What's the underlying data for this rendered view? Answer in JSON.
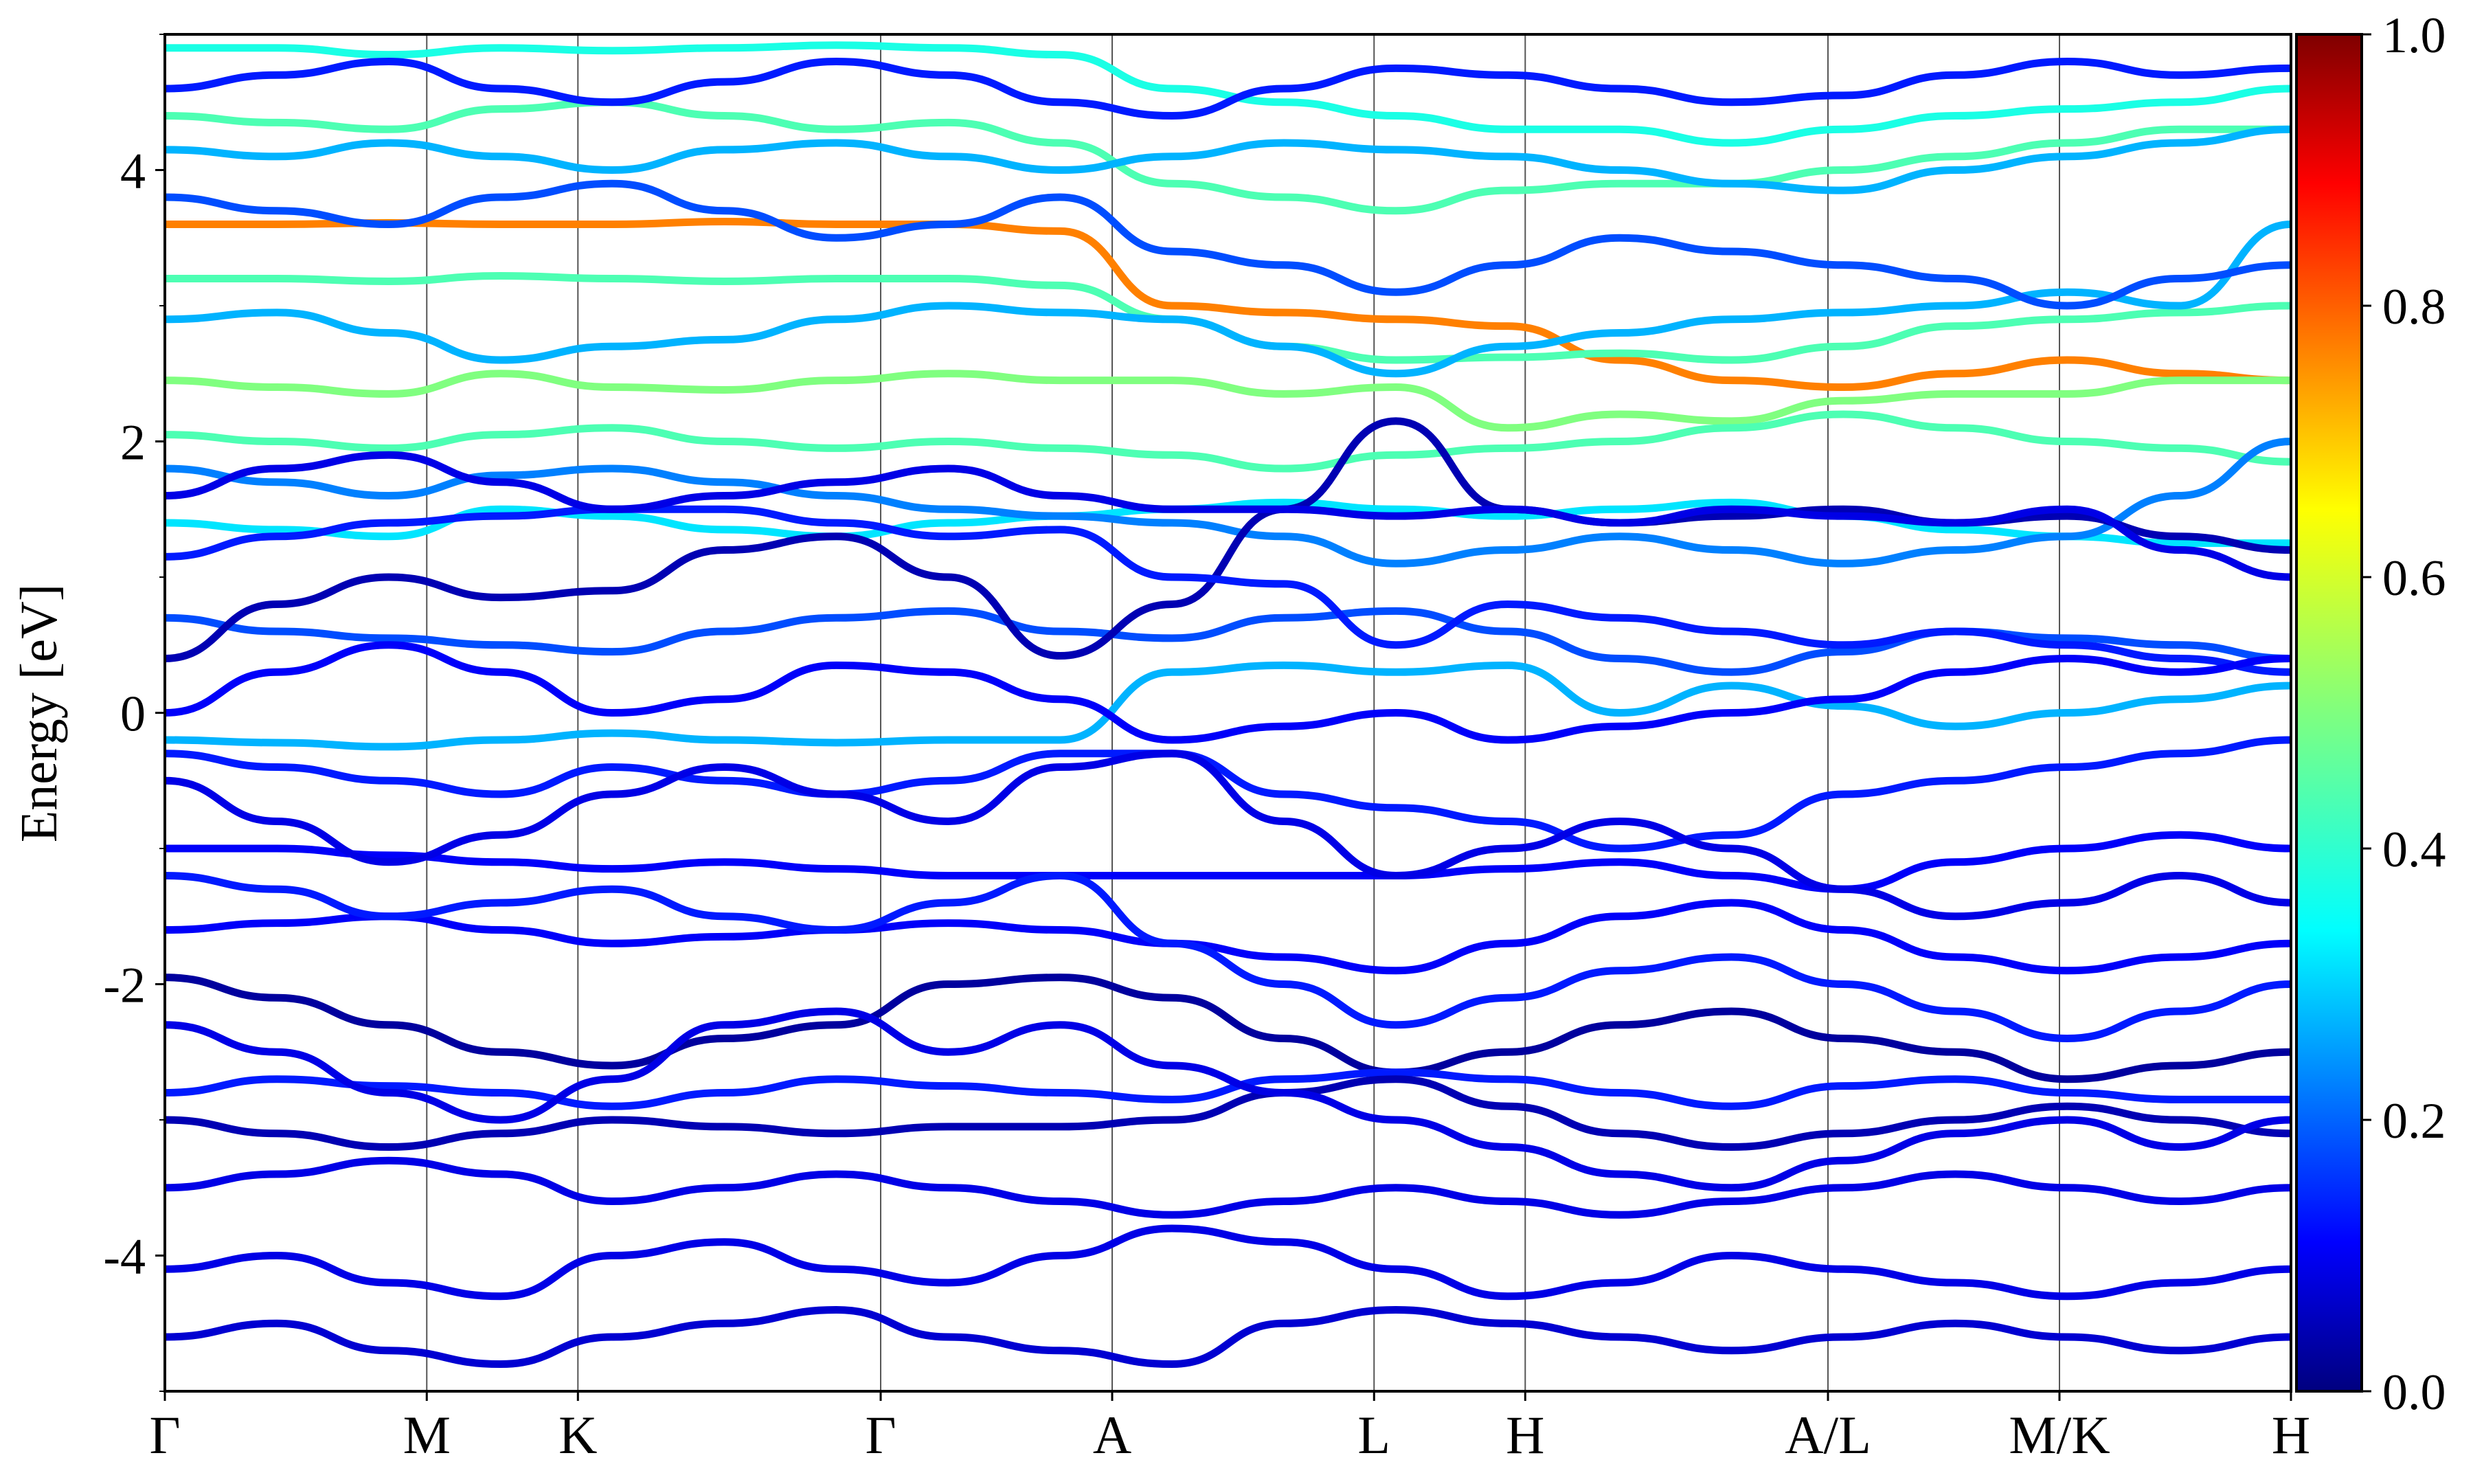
{
  "chart_data": {
    "type": "line",
    "title": "",
    "xlabel": "",
    "ylabel": "Energy [eV]",
    "ylim": [
      -5,
      5
    ],
    "yticks": [
      4,
      2,
      0,
      -2,
      -4
    ],
    "ytick_labels": [
      "4",
      "2",
      "0",
      "-2",
      "-4"
    ],
    "high_symmetry_points": [
      {
        "label": "Γ",
        "x": 0.0
      },
      {
        "label": "M",
        "x": 0.577
      },
      {
        "label": "K",
        "x": 0.91
      },
      {
        "label": "Γ",
        "x": 1.577
      },
      {
        "label": "A",
        "x": 2.087
      },
      {
        "label": "L",
        "x": 2.664
      },
      {
        "label": "H",
        "x": 2.997
      },
      {
        "label": "A/L",
        "x": 3.664
      },
      {
        "label": "M/K",
        "x": 4.174
      },
      {
        "label": "H",
        "x": 4.684
      }
    ],
    "xlim": [
      0,
      4.684
    ],
    "colormap": "jet",
    "colorbar": {
      "min": 0.0,
      "max": 1.0,
      "ticks": [
        0.0,
        0.2,
        0.4,
        0.6,
        0.8,
        1.0
      ],
      "tick_labels": [
        "0.0",
        "0.2",
        "0.4",
        "0.6",
        "0.8",
        "1.0"
      ]
    },
    "colors": {
      "c0": "#00007f",
      "c1": "#0000ff",
      "c2": "#007fff",
      "c3": "#00ffff",
      "c4": "#7fff7f",
      "c5": "#ffff00",
      "c6": "#ff7f00",
      "c7": "#ff0000",
      "c8": "#7f0000"
    },
    "band_count_note_hidden": "",
    "series": [
      {
        "label_hidden": "",
        "y": [
          3.6,
          3.6,
          3.61,
          3.6,
          3.6,
          3.62,
          3.6,
          3.6,
          3.55,
          3.0,
          2.95,
          2.9,
          2.85,
          2.6,
          2.45,
          2.4,
          2.5,
          2.6,
          2.5,
          2.45
        ],
        "w": 0.75
      },
      {
        "y": [
          3.2,
          3.2,
          3.18,
          3.22,
          3.2,
          3.18,
          3.2,
          3.2,
          3.15,
          2.9,
          2.7,
          2.6,
          2.62,
          2.65,
          2.6,
          2.7,
          2.85,
          2.9,
          2.95,
          3.0
        ],
        "w": 0.45
      },
      {
        "y": [
          2.45,
          2.4,
          2.35,
          2.5,
          2.4,
          2.38,
          2.45,
          2.5,
          2.45,
          2.45,
          2.35,
          2.4,
          2.1,
          2.2,
          2.15,
          2.3,
          2.35,
          2.35,
          2.45,
          2.45
        ],
        "w": 0.5
      },
      {
        "y": [
          4.9,
          4.9,
          4.85,
          4.9,
          4.88,
          4.9,
          4.92,
          4.9,
          4.85,
          4.6,
          4.5,
          4.4,
          4.3,
          4.3,
          4.2,
          4.3,
          4.4,
          4.45,
          4.5,
          4.6
        ],
        "w": 0.4
      },
      {
        "y": [
          4.4,
          4.35,
          4.3,
          4.45,
          4.5,
          4.4,
          4.3,
          4.35,
          4.2,
          3.9,
          3.8,
          3.7,
          3.85,
          3.9,
          3.9,
          4.0,
          4.1,
          4.2,
          4.3,
          4.3
        ],
        "w": 0.45
      },
      {
        "y": [
          2.05,
          2.0,
          1.95,
          2.05,
          2.1,
          2.0,
          1.95,
          2.0,
          1.95,
          1.9,
          1.8,
          1.9,
          1.95,
          2.0,
          2.1,
          2.2,
          2.1,
          2.0,
          1.95,
          1.85
        ],
        "w": 0.45
      },
      {
        "y": [
          1.4,
          1.35,
          1.3,
          1.5,
          1.45,
          1.35,
          1.3,
          1.4,
          1.45,
          1.5,
          1.55,
          1.5,
          1.45,
          1.5,
          1.55,
          1.45,
          1.35,
          1.3,
          1.25,
          1.25
        ],
        "w": 0.35
      },
      {
        "y": [
          -0.2,
          -0.22,
          -0.25,
          -0.2,
          -0.15,
          -0.2,
          -0.22,
          -0.2,
          -0.2,
          0.3,
          0.35,
          0.3,
          0.35,
          0.0,
          0.2,
          0.05,
          -0.1,
          0.0,
          0.1,
          0.2
        ],
        "w": 0.3
      },
      {
        "y": [
          2.9,
          2.95,
          2.8,
          2.6,
          2.7,
          2.75,
          2.9,
          3.0,
          2.95,
          2.9,
          2.7,
          2.5,
          2.7,
          2.8,
          2.9,
          2.95,
          3.0,
          3.1,
          3.0,
          3.6
        ],
        "w": 0.3
      },
      {
        "y": [
          4.15,
          4.1,
          4.2,
          4.1,
          4.0,
          4.15,
          4.2,
          4.1,
          4.0,
          4.1,
          4.2,
          4.15,
          4.1,
          4.0,
          3.9,
          3.85,
          4.0,
          4.1,
          4.2,
          4.3
        ],
        "w": 0.3
      },
      {
        "y": [
          1.8,
          1.7,
          1.6,
          1.75,
          1.8,
          1.7,
          1.6,
          1.5,
          1.45,
          1.4,
          1.3,
          1.1,
          1.2,
          1.3,
          1.2,
          1.1,
          1.2,
          1.3,
          1.6,
          2.0
        ],
        "w": 0.25
      },
      {
        "y": [
          0.7,
          0.6,
          0.55,
          0.5,
          0.45,
          0.6,
          0.7,
          0.75,
          0.6,
          0.55,
          0.7,
          0.75,
          0.6,
          0.4,
          0.3,
          0.45,
          0.6,
          0.55,
          0.5,
          0.4
        ],
        "w": 0.2
      },
      {
        "y": [
          0.4,
          0.8,
          1.0,
          0.85,
          0.9,
          1.2,
          1.3,
          1.0,
          0.42,
          0.8,
          1.5,
          2.15,
          1.5,
          1.4,
          1.45,
          1.5,
          1.4,
          1.45,
          1.3,
          1.2
        ],
        "w": 0.05
      },
      {
        "y": [
          1.15,
          1.3,
          1.4,
          1.45,
          1.5,
          1.5,
          1.4,
          1.3,
          1.35,
          1.0,
          0.95,
          0.5,
          0.8,
          0.7,
          0.6,
          0.5,
          0.6,
          0.5,
          0.4,
          0.3
        ],
        "w": 0.15
      },
      {
        "y": [
          -0.3,
          -0.4,
          -0.5,
          -0.6,
          -0.4,
          -0.5,
          -0.6,
          -0.5,
          -0.3,
          -0.3,
          -0.6,
          -0.7,
          -0.8,
          -1.0,
          -0.9,
          -0.6,
          -0.5,
          -0.4,
          -0.3,
          -0.2
        ],
        "w": 0.15
      },
      {
        "y": [
          -1.0,
          -1.0,
          -1.05,
          -1.1,
          -1.15,
          -1.1,
          -1.15,
          -1.2,
          -1.2,
          -1.2,
          -1.2,
          -1.2,
          -1.15,
          -1.1,
          -1.2,
          -1.3,
          -1.1,
          -1.0,
          -0.9,
          -1.0
        ],
        "w": 0.12
      },
      {
        "y": [
          -1.6,
          -1.55,
          -1.5,
          -1.6,
          -1.7,
          -1.65,
          -1.6,
          -1.55,
          -1.6,
          -1.7,
          -1.8,
          -1.9,
          -1.7,
          -1.5,
          -1.4,
          -1.6,
          -1.8,
          -1.9,
          -1.8,
          -1.7
        ],
        "w": 0.12
      },
      {
        "y": [
          -1.95,
          -2.1,
          -2.3,
          -2.5,
          -2.6,
          -2.4,
          -2.3,
          -2.0,
          -1.95,
          -2.1,
          -2.4,
          -2.65,
          -2.5,
          -2.3,
          -2.2,
          -2.4,
          -2.5,
          -2.7,
          -2.6,
          -2.5
        ],
        "w": 0.03
      },
      {
        "y": [
          -2.8,
          -2.7,
          -2.75,
          -2.8,
          -2.9,
          -2.8,
          -2.7,
          -2.75,
          -2.8,
          -2.85,
          -2.7,
          -2.65,
          -2.7,
          -2.8,
          -2.9,
          -2.75,
          -2.7,
          -2.8,
          -2.85,
          -2.85
        ],
        "w": 0.15
      },
      {
        "y": [
          -3.0,
          -3.1,
          -3.2,
          -3.1,
          -3.0,
          -3.05,
          -3.1,
          -3.05,
          -3.05,
          -3.0,
          -2.8,
          -2.7,
          -2.9,
          -3.1,
          -3.2,
          -3.1,
          -3.0,
          -2.9,
          -3.0,
          -3.1
        ],
        "w": 0.05
      },
      {
        "y": [
          -3.5,
          -3.4,
          -3.3,
          -3.4,
          -3.6,
          -3.5,
          -3.4,
          -3.5,
          -3.6,
          -3.7,
          -3.6,
          -3.5,
          -3.6,
          -3.7,
          -3.6,
          -3.5,
          -3.4,
          -3.5,
          -3.6,
          -3.5
        ],
        "w": 0.1
      },
      {
        "y": [
          -4.1,
          -4.0,
          -4.2,
          -4.3,
          -4.0,
          -3.9,
          -4.1,
          -4.2,
          -4.0,
          -3.8,
          -3.9,
          -4.1,
          -4.3,
          -4.2,
          -4.0,
          -4.1,
          -4.2,
          -4.3,
          -4.2,
          -4.1
        ],
        "w": 0.1
      },
      {
        "y": [
          -4.6,
          -4.5,
          -4.7,
          -4.8,
          -4.6,
          -4.5,
          -4.4,
          -4.6,
          -4.7,
          -4.8,
          -4.5,
          -4.4,
          -4.5,
          -4.6,
          -4.7,
          -4.6,
          -4.5,
          -4.6,
          -4.7,
          -4.6
        ],
        "w": 0.08
      },
      {
        "y": [
          0.0,
          0.3,
          0.5,
          0.3,
          0.0,
          0.1,
          0.35,
          0.3,
          0.1,
          -0.2,
          -0.1,
          0.0,
          -0.2,
          -0.1,
          0.0,
          0.1,
          0.3,
          0.4,
          0.3,
          0.4
        ],
        "w": 0.12
      },
      {
        "y": [
          -0.5,
          -0.8,
          -1.1,
          -0.9,
          -0.6,
          -0.4,
          -0.6,
          -0.8,
          -0.4,
          -0.3,
          -0.8,
          -1.2,
          -1.0,
          -0.8,
          -1.0,
          -1.3,
          -1.5,
          -1.4,
          -1.2,
          -1.4
        ],
        "w": 0.1
      },
      {
        "y": [
          1.6,
          1.8,
          1.9,
          1.7,
          1.5,
          1.6,
          1.7,
          1.8,
          1.6,
          1.5,
          1.5,
          1.45,
          1.5,
          1.4,
          1.5,
          1.45,
          1.4,
          1.5,
          1.2,
          1.0
        ],
        "w": 0.1
      },
      {
        "y": [
          -2.3,
          -2.5,
          -2.8,
          -3.0,
          -2.7,
          -2.3,
          -2.2,
          -2.5,
          -2.3,
          -2.6,
          -2.8,
          -3.0,
          -3.2,
          -3.4,
          -3.5,
          -3.3,
          -3.1,
          -3.0,
          -3.2,
          -3.0
        ],
        "w": 0.1
      },
      {
        "y": [
          -1.2,
          -1.3,
          -1.5,
          -1.4,
          -1.3,
          -1.5,
          -1.6,
          -1.4,
          -1.2,
          -1.7,
          -2.0,
          -2.3,
          -2.1,
          -1.9,
          -1.8,
          -2.0,
          -2.2,
          -2.4,
          -2.2,
          -2.0
        ],
        "w": 0.15
      },
      {
        "y": [
          3.8,
          3.7,
          3.6,
          3.8,
          3.9,
          3.7,
          3.5,
          3.6,
          3.8,
          3.4,
          3.3,
          3.1,
          3.3,
          3.5,
          3.4,
          3.3,
          3.2,
          3.0,
          3.2,
          3.3
        ],
        "w": 0.2
      },
      {
        "y": [
          4.6,
          4.7,
          4.8,
          4.6,
          4.5,
          4.65,
          4.8,
          4.7,
          4.5,
          4.4,
          4.6,
          4.75,
          4.7,
          4.6,
          4.5,
          4.55,
          4.7,
          4.8,
          4.7,
          4.75
        ],
        "w": 0.15
      }
    ]
  }
}
